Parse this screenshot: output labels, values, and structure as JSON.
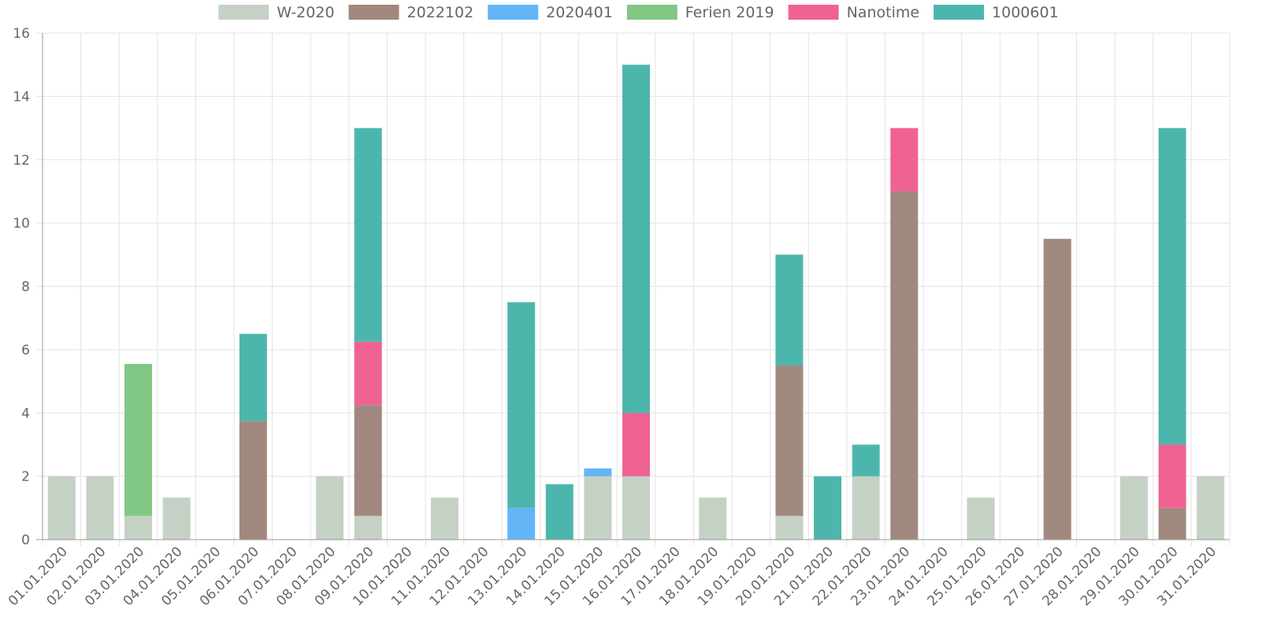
{
  "chart_data": {
    "type": "bar",
    "stacked": true,
    "categories": [
      "01.01.2020",
      "02.01.2020",
      "03.01.2020",
      "04.01.2020",
      "05.01.2020",
      "06.01.2020",
      "07.01.2020",
      "08.01.2020",
      "09.01.2020",
      "10.01.2020",
      "11.01.2020",
      "12.01.2020",
      "13.01.2020",
      "14.01.2020",
      "15.01.2020",
      "16.01.2020",
      "17.01.2020",
      "18.01.2020",
      "19.01.2020",
      "20.01.2020",
      "21.01.2020",
      "22.01.2020",
      "23.01.2020",
      "24.01.2020",
      "25.01.2020",
      "26.01.2020",
      "27.01.2020",
      "28.01.2020",
      "29.01.2020",
      "30.01.2020",
      "31.01.2020"
    ],
    "series": [
      {
        "name": "W-2020",
        "color": "#c5d1c4",
        "values": [
          2,
          2,
          0.75,
          1.33,
          0,
          0,
          0,
          2,
          0.75,
          0,
          1.33,
          0,
          0,
          0,
          2,
          2,
          0,
          1.33,
          0,
          0.75,
          0,
          2,
          0,
          0,
          1.33,
          0,
          0,
          0,
          2,
          0,
          2
        ]
      },
      {
        "name": "2022102",
        "color": "#a1887f",
        "values": [
          0,
          0,
          0,
          0,
          0,
          3.75,
          0,
          0,
          3.5,
          0,
          0,
          0,
          0,
          0,
          0,
          0,
          0,
          0,
          0,
          4.75,
          0,
          0,
          11,
          0,
          0,
          0,
          9.5,
          0,
          0,
          1,
          0
        ]
      },
      {
        "name": "2020401",
        "color": "#64b5f6",
        "values": [
          0,
          0,
          0,
          0,
          0,
          0,
          0,
          0,
          0,
          0,
          0,
          0,
          1,
          0,
          0.25,
          0,
          0,
          0,
          0,
          0,
          0,
          0,
          0,
          0,
          0,
          0,
          0,
          0,
          0,
          0,
          0
        ]
      },
      {
        "name": "Ferien 2019",
        "color": "#81c784",
        "values": [
          0,
          0,
          4.8,
          0,
          0,
          0,
          0,
          0,
          0,
          0,
          0,
          0,
          0,
          0,
          0,
          0,
          0,
          0,
          0,
          0,
          0,
          0,
          0,
          0,
          0,
          0,
          0,
          0,
          0,
          0,
          0
        ]
      },
      {
        "name": "Nanotime",
        "color": "#f06292",
        "values": [
          0,
          0,
          0,
          0,
          0,
          0,
          0,
          0,
          2,
          0,
          0,
          0,
          0,
          0,
          0,
          2,
          0,
          0,
          0,
          0,
          0,
          0,
          2,
          0,
          0,
          0,
          0,
          0,
          0,
          2,
          0
        ]
      },
      {
        "name": "1000601",
        "color": "#4db6ac",
        "values": [
          0,
          0,
          0,
          0,
          0,
          2.75,
          0,
          0,
          6.75,
          0,
          0,
          0,
          6.5,
          1.75,
          0,
          11,
          0,
          0,
          0,
          3.5,
          2,
          1,
          0,
          0,
          0,
          0,
          0,
          0,
          0,
          10,
          0
        ]
      }
    ],
    "ylim": [
      0,
      16
    ],
    "yticks": [
      0,
      2,
      4,
      6,
      8,
      10,
      12,
      14,
      16
    ],
    "grid": true,
    "legend_position": "top"
  }
}
